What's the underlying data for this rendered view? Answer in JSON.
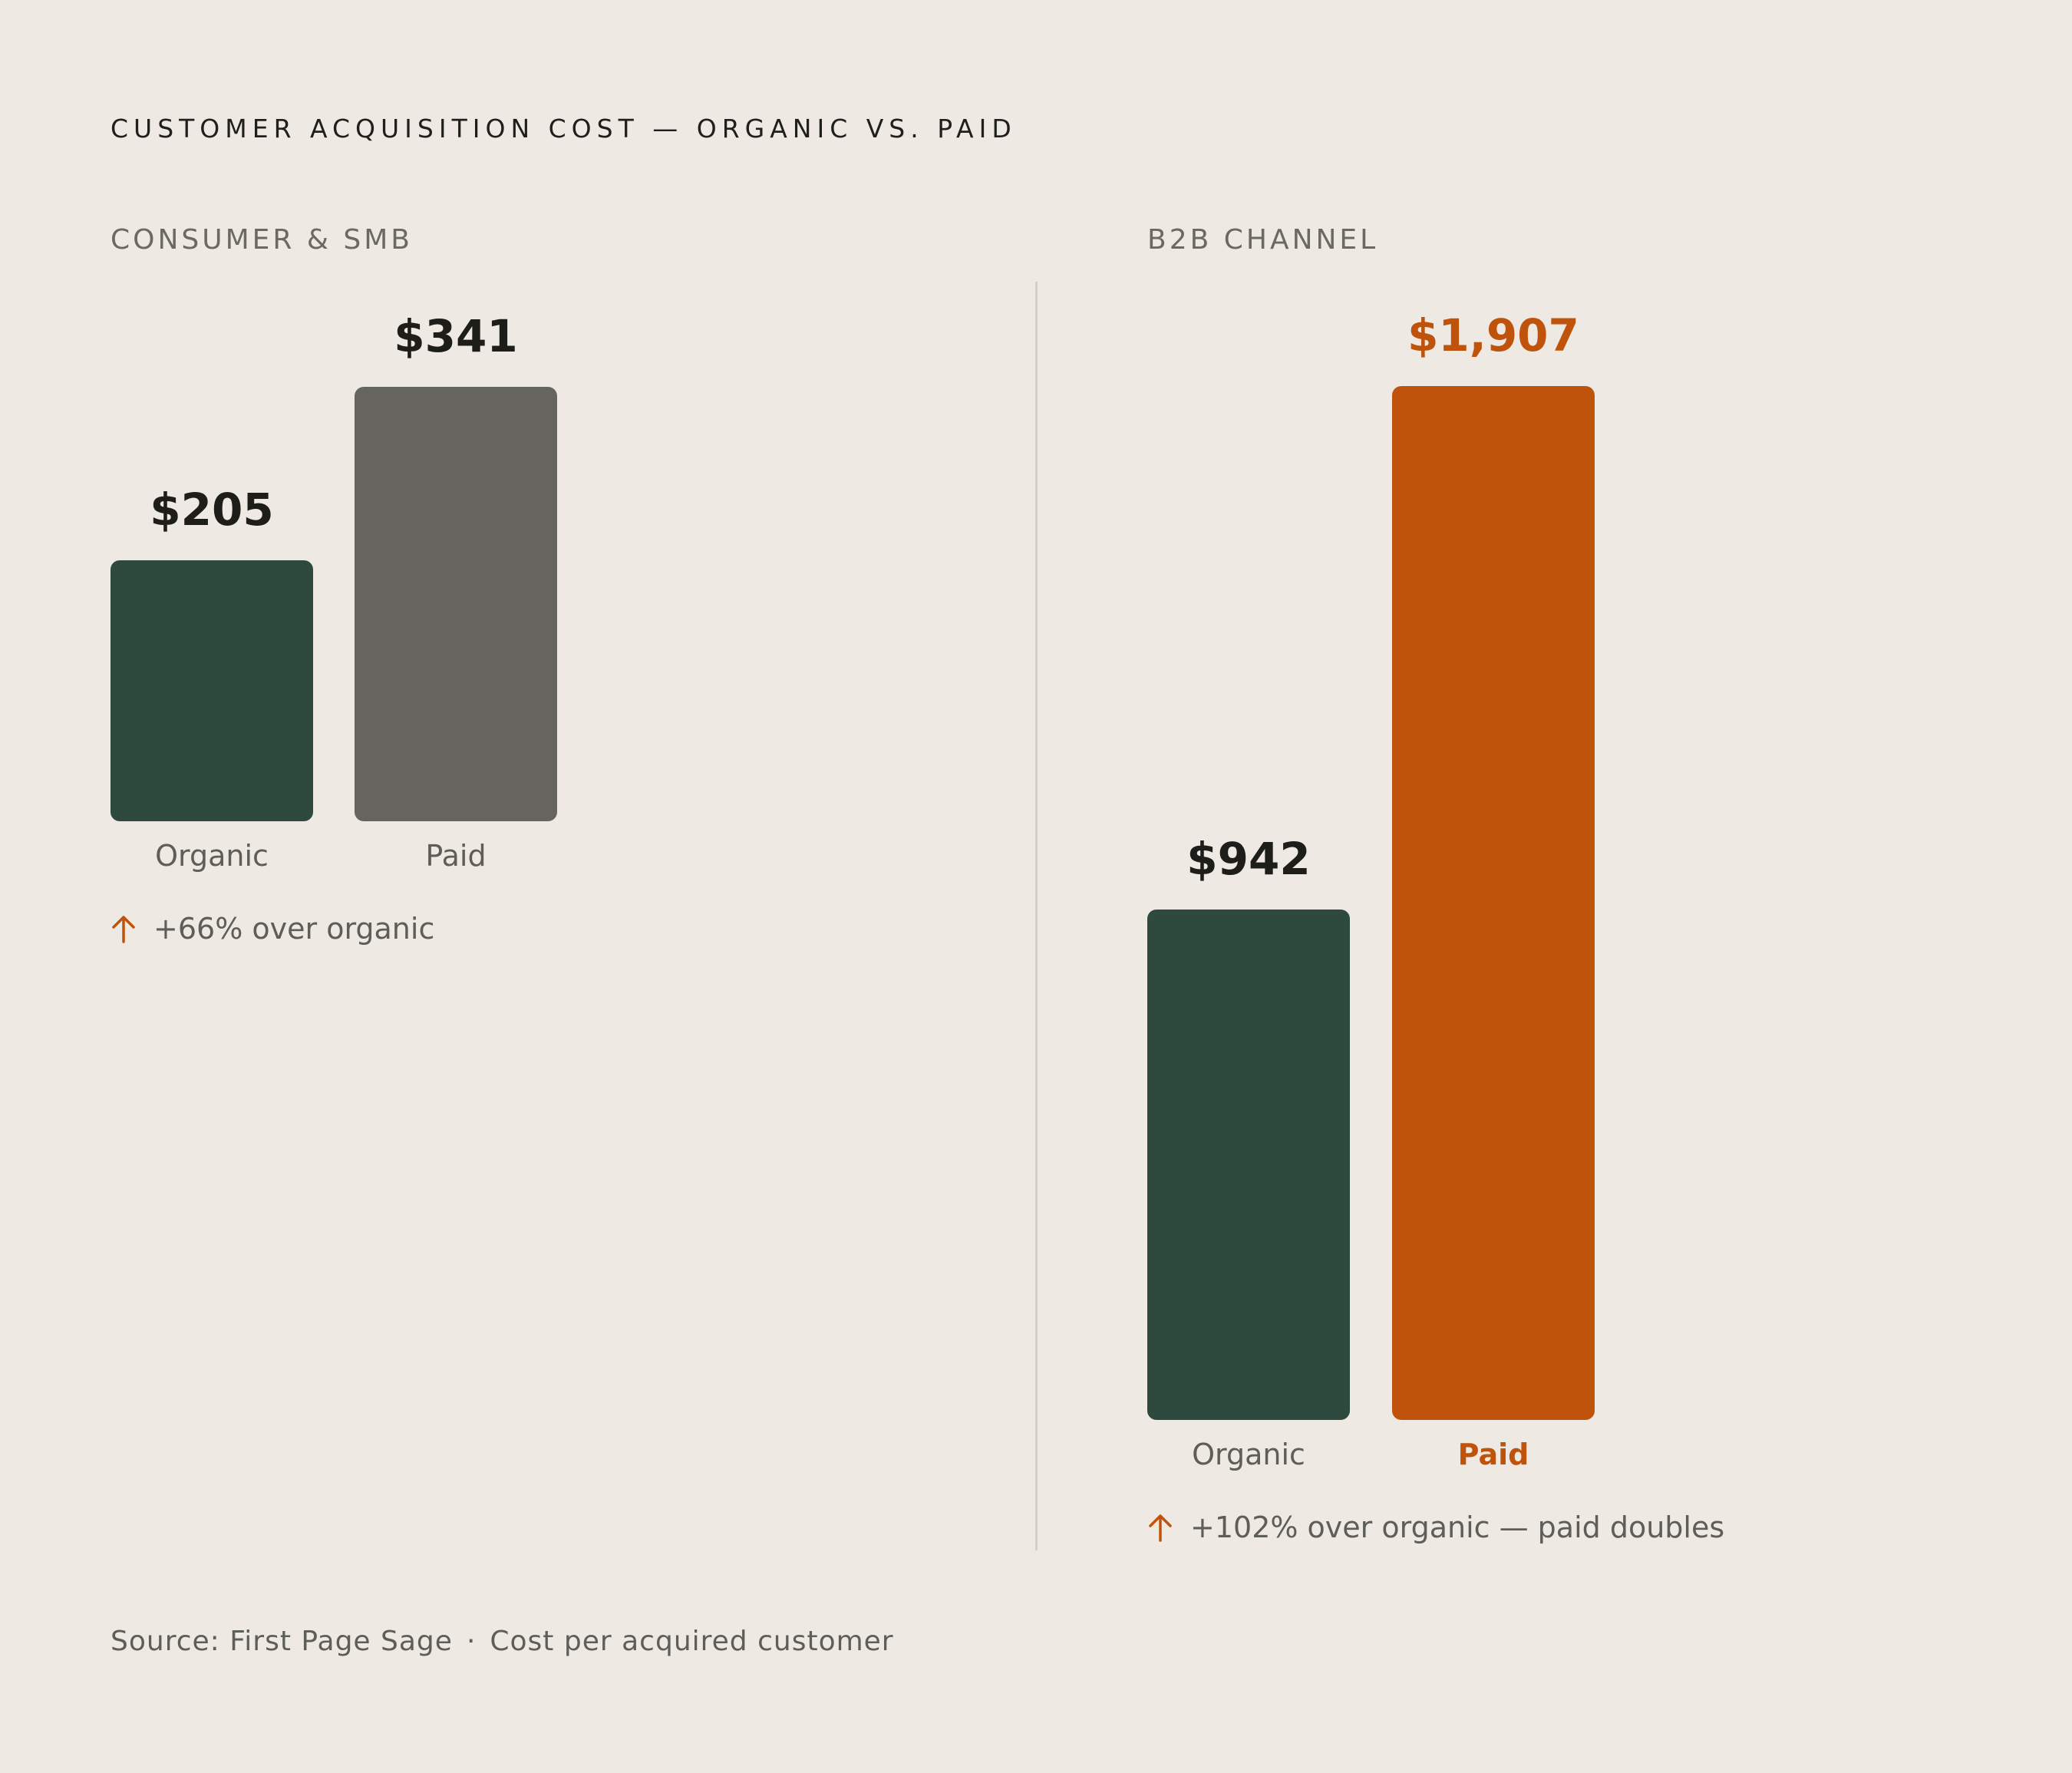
{
  "chart_data": [
    {
      "type": "bar",
      "title": "CONSUMER & SMB",
      "categories": [
        "Organic",
        "Paid"
      ],
      "values": [
        205,
        341
      ],
      "value_labels": [
        "$205",
        "$341"
      ],
      "note": "+66% over organic",
      "colors": [
        "#2e4a3f",
        "#65645e"
      ]
    },
    {
      "type": "bar",
      "title": "B2B CHANNEL",
      "categories": [
        "Organic",
        "Paid"
      ],
      "values": [
        942,
        1907
      ],
      "value_labels": [
        "$942",
        "$1,907"
      ],
      "note": "+102% over organic — paid doubles",
      "colors": [
        "#2e4a3f",
        "#c0530b"
      ],
      "highlight": "Paid"
    }
  ],
  "header": {
    "title": "CUSTOMER ACQUISITION COST — ORGANIC VS. PAID"
  },
  "footer": {
    "source": "Source: First Page Sage",
    "separator": "·",
    "unit": "Cost per acquired customer"
  },
  "colors": {
    "background": "#eeeae3",
    "accent": "#c0530b",
    "organic": "#2e4a3f",
    "paid_neutral": "#65645e"
  }
}
